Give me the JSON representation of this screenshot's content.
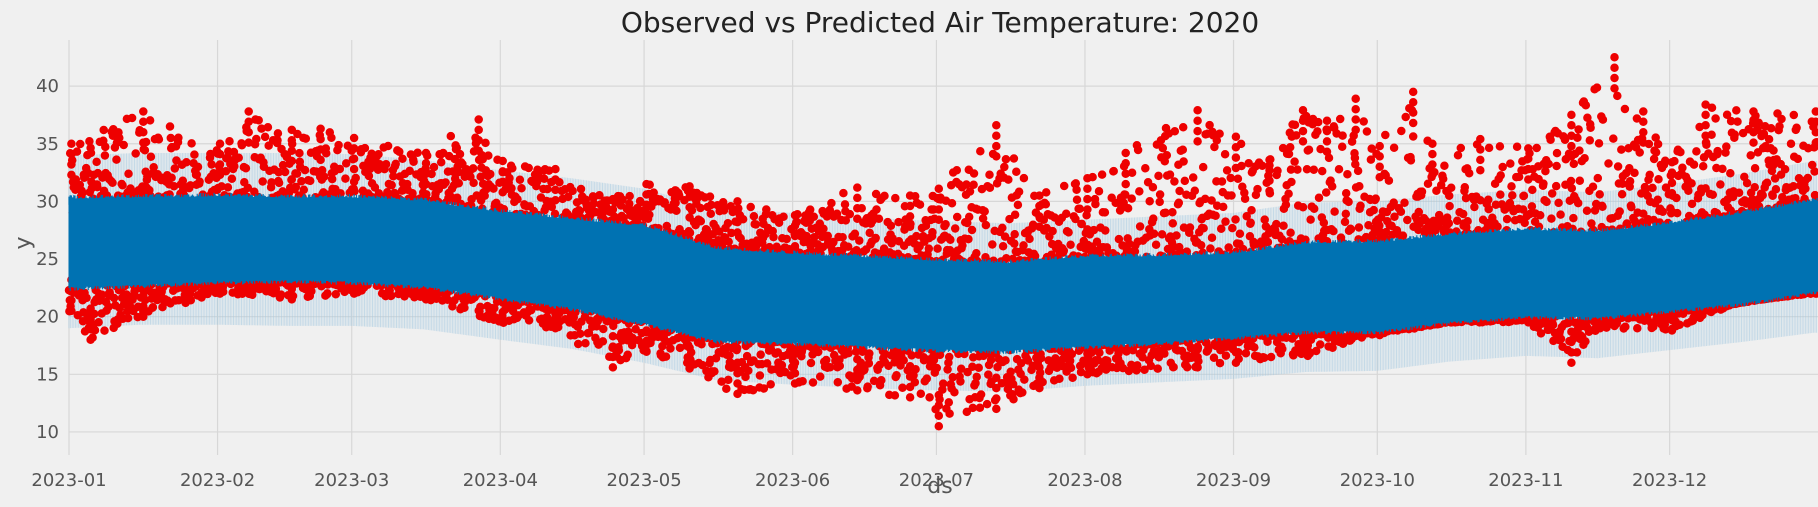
{
  "chart_data": {
    "type": "scatter",
    "title": "Observed vs Predicted Air Temperature: 2020",
    "xlabel": "ds",
    "ylabel": "y",
    "x_ticks": [
      "2023-01",
      "2023-02",
      "2023-03",
      "2023-04",
      "2023-05",
      "2023-06",
      "2023-07",
      "2023-08",
      "2023-09",
      "2023-10",
      "2023-11",
      "2023-12"
    ],
    "y_ticks": [
      10,
      15,
      20,
      25,
      30,
      35,
      40
    ],
    "xlim": [
      "2023-01-01",
      "2023-12-31"
    ],
    "ylim": [
      8,
      44
    ],
    "grid": true,
    "colors": {
      "background": "#f0f0f0",
      "grid": "#d7d7d7",
      "observed": "#ee0000",
      "predicted": "#0072b2",
      "uncertainty": "#a3c8e0"
    },
    "series": [
      {
        "kind": "forecast_band",
        "description_points_date": [
          "2023-01-01",
          "2023-01-16",
          "2023-02-01",
          "2023-02-16",
          "2023-03-01",
          "2023-03-16",
          "2023-04-01",
          "2023-04-16",
          "2023-05-01",
          "2023-05-16",
          "2023-06-01",
          "2023-06-16",
          "2023-07-01",
          "2023-07-16",
          "2023-08-01",
          "2023-08-16",
          "2023-09-01",
          "2023-09-16",
          "2023-10-01",
          "2023-10-16",
          "2023-11-01",
          "2023-11-16",
          "2023-12-01",
          "2023-12-16",
          "2023-12-31"
        ],
        "yhat_upper": [
          30.2,
          30.3,
          30.4,
          30.3,
          30.3,
          30.0,
          29.0,
          28.4,
          27.8,
          25.8,
          25.4,
          25.1,
          24.8,
          24.6,
          25.1,
          25.2,
          25.4,
          26.3,
          26.4,
          27.0,
          27.5,
          27.3,
          28.0,
          28.9,
          30.0
        ],
        "yhat_lower": [
          22.6,
          22.8,
          23.1,
          23.2,
          23.1,
          22.7,
          21.7,
          20.8,
          19.5,
          18.0,
          17.8,
          17.5,
          17.2,
          17.1,
          17.5,
          17.8,
          18.3,
          18.8,
          18.8,
          19.6,
          20.1,
          20.0,
          20.6,
          21.2,
          22.2
        ],
        "interval_upper": [
          34.0,
          34.2,
          34.2,
          34.2,
          34.1,
          33.6,
          32.7,
          32.0,
          31.1,
          29.4,
          29.0,
          28.6,
          28.3,
          28.1,
          28.4,
          28.7,
          29.0,
          29.9,
          30.0,
          30.6,
          31.0,
          30.8,
          31.5,
          32.4,
          33.5
        ],
        "interval_lower": [
          19.0,
          19.3,
          19.3,
          19.2,
          19.2,
          18.9,
          18.0,
          17.2,
          16.0,
          14.5,
          14.1,
          13.8,
          13.6,
          13.5,
          14.0,
          14.3,
          14.6,
          15.2,
          15.3,
          16.1,
          16.6,
          16.4,
          17.1,
          17.8,
          18.6
        ]
      },
      {
        "kind": "observed_points",
        "observed_high_anchor_date": [
          "2023-01-01",
          "2023-01-16",
          "2023-02-01",
          "2023-02-07",
          "2023-02-16",
          "2023-02-22",
          "2023-03-01",
          "2023-03-16",
          "2023-03-27",
          "2023-04-01",
          "2023-04-12",
          "2023-04-24",
          "2023-05-01",
          "2023-05-10",
          "2023-05-20",
          "2023-06-01",
          "2023-06-14",
          "2023-06-25",
          "2023-07-01",
          "2023-07-13",
          "2023-07-22",
          "2023-08-01",
          "2023-08-09",
          "2023-08-24",
          "2023-09-01",
          "2023-09-08",
          "2023-09-15",
          "2023-09-20",
          "2023-09-26",
          "2023-10-01",
          "2023-10-08",
          "2023-10-12",
          "2023-10-22",
          "2023-11-01",
          "2023-11-10",
          "2023-11-19",
          "2023-11-25",
          "2023-12-01",
          "2023-12-08",
          "2023-12-18",
          "2023-12-31"
        ],
        "observed_high": [
          35.0,
          37.8,
          35.0,
          37.8,
          36.2,
          36.3,
          35.5,
          34.2,
          37.1,
          33.5,
          32.8,
          30.2,
          31.5,
          31.3,
          30.0,
          28.8,
          31.2,
          30.5,
          31.1,
          36.6,
          30.5,
          32.0,
          34.2,
          37.9,
          35.6,
          33.6,
          37.9,
          37.0,
          38.9,
          34.8,
          39.5,
          35.0,
          35.4,
          34.6,
          37.5,
          42.5,
          37.8,
          33.4,
          38.4,
          37.8,
          37.8
        ],
        "observed_low_anchor_date": [
          "2023-01-01",
          "2023-01-05",
          "2023-01-16",
          "2023-02-01",
          "2023-02-16",
          "2023-03-01",
          "2023-03-16",
          "2023-04-01",
          "2023-04-12",
          "2023-04-24",
          "2023-05-01",
          "2023-05-10",
          "2023-05-20",
          "2023-06-01",
          "2023-06-14",
          "2023-06-25",
          "2023-07-01",
          "2023-07-13",
          "2023-07-22",
          "2023-08-01",
          "2023-08-24",
          "2023-09-01",
          "2023-09-16",
          "2023-10-01",
          "2023-10-16",
          "2023-11-01",
          "2023-11-10",
          "2023-11-16",
          "2023-12-01",
          "2023-12-16",
          "2023-12-31"
        ],
        "observed_low": [
          20.5,
          18.0,
          20.0,
          22.0,
          21.5,
          22.0,
          21.5,
          19.5,
          19.0,
          15.6,
          17.0,
          15.5,
          13.3,
          14.2,
          13.6,
          13.0,
          10.5,
          12.0,
          13.8,
          15.0,
          15.6,
          16.0,
          16.6,
          18.4,
          19.5,
          19.5,
          16.0,
          19.0,
          18.8,
          21.3,
          22.0
        ]
      }
    ]
  }
}
